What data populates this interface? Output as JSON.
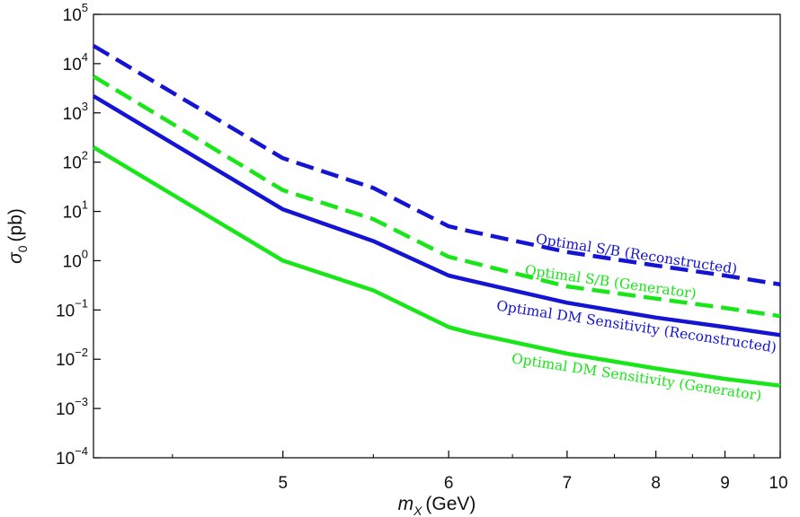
{
  "chart_data": {
    "type": "line",
    "title": "",
    "xlabel": {
      "var": "m",
      "sub": "X",
      "unit": "(GeV)"
    },
    "ylabel": {
      "var": "σ",
      "sub": "0",
      "unit": "(pb)"
    },
    "xscale": "reciprocal",
    "yscale": "log",
    "xlim": [
      4.2,
      10
    ],
    "ylim": [
      0.0001,
      100000
    ],
    "grid": false,
    "xticks": [
      {
        "value": 5,
        "label": "5"
      },
      {
        "value": 6,
        "label": "6"
      },
      {
        "value": 7,
        "label": "7"
      },
      {
        "value": 8,
        "label": "8"
      },
      {
        "value": 9,
        "label": "9"
      },
      {
        "value": 10,
        "label": "10"
      }
    ],
    "yticks": [
      {
        "value": 0.0001,
        "base": "10",
        "exp": "−4"
      },
      {
        "value": 0.001,
        "base": "10",
        "exp": "−3"
      },
      {
        "value": 0.01,
        "base": "10",
        "exp": "−2"
      },
      {
        "value": 0.1,
        "base": "10",
        "exp": "−1"
      },
      {
        "value": 1,
        "base": "10",
        "exp": "0"
      },
      {
        "value": 10,
        "base": "10",
        "exp": "1"
      },
      {
        "value": 100,
        "base": "10",
        "exp": "2"
      },
      {
        "value": 1000,
        "base": "10",
        "exp": "3"
      },
      {
        "value": 10000,
        "base": "10",
        "exp": "4"
      },
      {
        "value": 100000,
        "base": "10",
        "exp": "5"
      }
    ],
    "series": [
      {
        "name": "Optimal S/B (Reconstructed)",
        "color": "#1414d2",
        "dash": true,
        "x": [
          4.2,
          5,
          5.5,
          6,
          6.15,
          7,
          8,
          9,
          10
        ],
        "y": [
          23000,
          120,
          30,
          5,
          4,
          1.5,
          0.8,
          0.5,
          0.33
        ]
      },
      {
        "name": "Optimal S/B (Generator)",
        "color": "#19e619",
        "dash": true,
        "x": [
          4.2,
          5,
          5.5,
          6,
          6.15,
          7,
          8,
          9,
          10
        ],
        "y": [
          5500,
          27,
          7,
          1.2,
          0.95,
          0.3,
          0.17,
          0.11,
          0.075
        ]
      },
      {
        "name": "Optimal DM Sensitivity (Reconstructed)",
        "color": "#1414d2",
        "dash": false,
        "x": [
          4.2,
          5,
          5.5,
          6,
          6.15,
          7,
          8,
          9,
          10
        ],
        "y": [
          2200,
          11,
          2.5,
          0.5,
          0.4,
          0.14,
          0.07,
          0.045,
          0.031
        ]
      },
      {
        "name": "Optimal DM Sensitivity (Generator)",
        "color": "#19e619",
        "dash": false,
        "x": [
          4.2,
          5,
          5.5,
          6,
          6.15,
          7,
          8,
          9,
          10
        ],
        "y": [
          200,
          1,
          0.25,
          0.045,
          0.035,
          0.013,
          0.0065,
          0.004,
          0.0029
        ]
      }
    ],
    "annotations": [
      {
        "text": "Optimal S/B (Reconstructed)",
        "series": 0,
        "x": 7.75,
        "y": 1.1
      },
      {
        "text": "Optimal S/B (Generator)",
        "series": 1,
        "x": 7.45,
        "y": 0.3
      },
      {
        "text": "Optimal DM Sensitivity (Reconstructed)",
        "series": 2,
        "x": 7.75,
        "y": 0.037
      },
      {
        "text": "Optimal DM Sensitivity (Generator)",
        "series": 3,
        "x": 7.75,
        "y": 0.0035
      }
    ]
  }
}
